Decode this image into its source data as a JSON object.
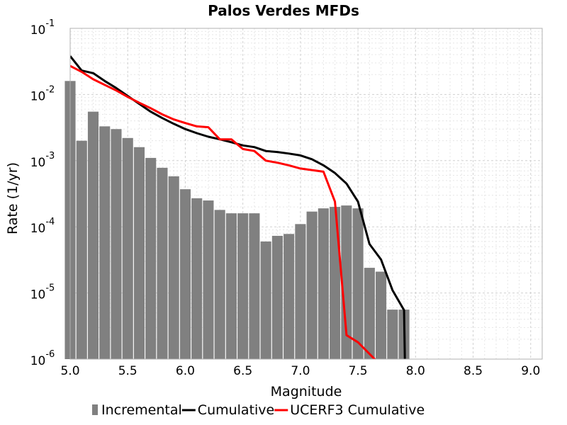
{
  "chart_data": {
    "type": "bar",
    "title": "Palos Verdes MFDs",
    "xlabel": "Magnitude",
    "ylabel": "Rate (1/yr)",
    "xlim": [
      5.0,
      9.1
    ],
    "ylim": [
      1e-06,
      0.1
    ],
    "y_scale": "log",
    "grid": true,
    "legend_position": "bottom",
    "x_ticks": [
      "5.0",
      "5.5",
      "6.0",
      "6.5",
      "7.0",
      "7.5",
      "8.0",
      "8.5",
      "9.0"
    ],
    "y_ticks": [
      {
        "base": "10",
        "exp": "-6"
      },
      {
        "base": "10",
        "exp": "-5"
      },
      {
        "base": "10",
        "exp": "-4"
      },
      {
        "base": "10",
        "exp": "-3"
      },
      {
        "base": "10",
        "exp": "-2"
      },
      {
        "base": "10",
        "exp": "-1"
      }
    ],
    "series": [
      {
        "name": "Incremental",
        "kind": "bar",
        "color": "#808080",
        "x": [
          5.0,
          5.1,
          5.2,
          5.3,
          5.4,
          5.5,
          5.6,
          5.7,
          5.8,
          5.9,
          6.0,
          6.1,
          6.2,
          6.3,
          6.4,
          6.5,
          6.6,
          6.7,
          6.8,
          6.9,
          7.0,
          7.1,
          7.2,
          7.3,
          7.4,
          7.5,
          7.6,
          7.7,
          7.8,
          7.9
        ],
        "values": [
          0.016,
          0.002,
          0.0055,
          0.0033,
          0.003,
          0.0022,
          0.0016,
          0.0011,
          0.00078,
          0.00058,
          0.00037,
          0.00027,
          0.00025,
          0.00018,
          0.00016,
          0.00016,
          0.00016,
          6e-05,
          7.3e-05,
          7.8e-05,
          0.00011,
          0.00017,
          0.00019,
          0.0002,
          0.00021,
          0.00019,
          2.4e-05,
          2.1e-05,
          5.6e-06,
          5.6e-06
        ]
      },
      {
        "name": "Cumulative",
        "kind": "line",
        "color": "#000000",
        "x": [
          5.0,
          5.1,
          5.2,
          5.3,
          5.4,
          5.5,
          5.6,
          5.7,
          5.8,
          5.9,
          6.0,
          6.1,
          6.2,
          6.3,
          6.4,
          6.5,
          6.6,
          6.7,
          6.8,
          6.9,
          7.0,
          7.1,
          7.2,
          7.3,
          7.4,
          7.5,
          7.6,
          7.7,
          7.8,
          7.9,
          7.91
        ],
        "values": [
          0.038,
          0.023,
          0.021,
          0.016,
          0.0125,
          0.0095,
          0.0072,
          0.0055,
          0.0044,
          0.0036,
          0.003,
          0.0026,
          0.0023,
          0.0021,
          0.0019,
          0.0017,
          0.0016,
          0.0014,
          0.00135,
          0.00128,
          0.0012,
          0.00105,
          0.00085,
          0.00065,
          0.00045,
          0.00024,
          5.5e-05,
          3.2e-05,
          1.1e-05,
          5.5e-06,
          5e-07
        ]
      },
      {
        "name": "UCERF3 Cumulative",
        "kind": "line",
        "color": "#ff0000",
        "x": [
          5.0,
          5.1,
          5.2,
          5.3,
          5.4,
          5.5,
          5.6,
          5.7,
          5.8,
          5.9,
          6.0,
          6.1,
          6.2,
          6.3,
          6.4,
          6.5,
          6.6,
          6.7,
          6.8,
          6.9,
          7.0,
          7.1,
          7.2,
          7.3,
          7.4,
          7.5,
          7.6,
          7.7
        ],
        "values": [
          0.027,
          0.022,
          0.017,
          0.014,
          0.0115,
          0.0092,
          0.0075,
          0.0062,
          0.005,
          0.0042,
          0.0037,
          0.0033,
          0.0032,
          0.0021,
          0.0021,
          0.0015,
          0.0014,
          0.001,
          0.00093,
          0.00085,
          0.00076,
          0.00072,
          0.00068,
          0.00024,
          2.3e-06,
          1.8e-06,
          1.2e-06,
          8e-07
        ]
      }
    ]
  }
}
